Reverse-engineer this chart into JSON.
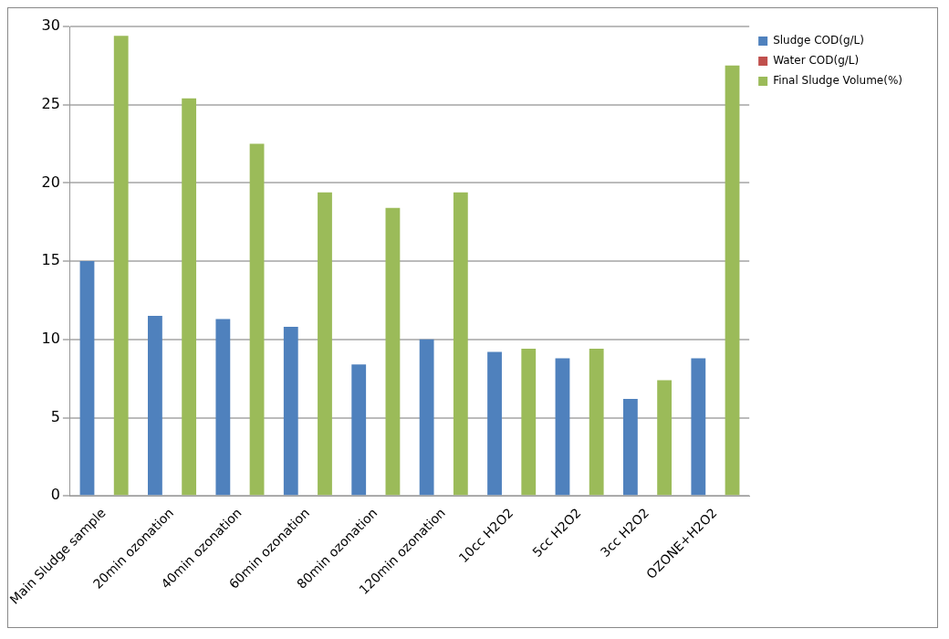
{
  "chart_data": {
    "type": "bar",
    "categories": [
      "Main Sludge sample",
      "20min ozonation",
      "40min ozonation",
      "60min ozonation",
      "80min ozonation",
      "120min ozonation",
      "10cc H2O2",
      "5cc H2O2",
      "3cc H2O2",
      "OZONE+H2O2"
    ],
    "series": [
      {
        "name": "Sludge COD(g/L)",
        "color": "#4f81bd",
        "values": [
          15,
          11.5,
          11.3,
          10.8,
          8.4,
          10,
          9.2,
          8.8,
          6.2,
          8.8
        ]
      },
      {
        "name": "Water COD(g/L)",
        "color": "#c0504d",
        "values": [
          0,
          0,
          0,
          0,
          0,
          0,
          0,
          0,
          0,
          0
        ]
      },
      {
        "name": "Final Sludge Volume(%)",
        "color": "#9bbb59",
        "values": [
          29.4,
          25.4,
          22.5,
          19.4,
          18.4,
          19.4,
          9.4,
          9.4,
          7.4,
          27.5
        ]
      }
    ],
    "ylim": [
      0,
      30
    ],
    "yticks": [
      0,
      5,
      10,
      15,
      20,
      25,
      30
    ],
    "grid": "y",
    "legend": "top right"
  }
}
